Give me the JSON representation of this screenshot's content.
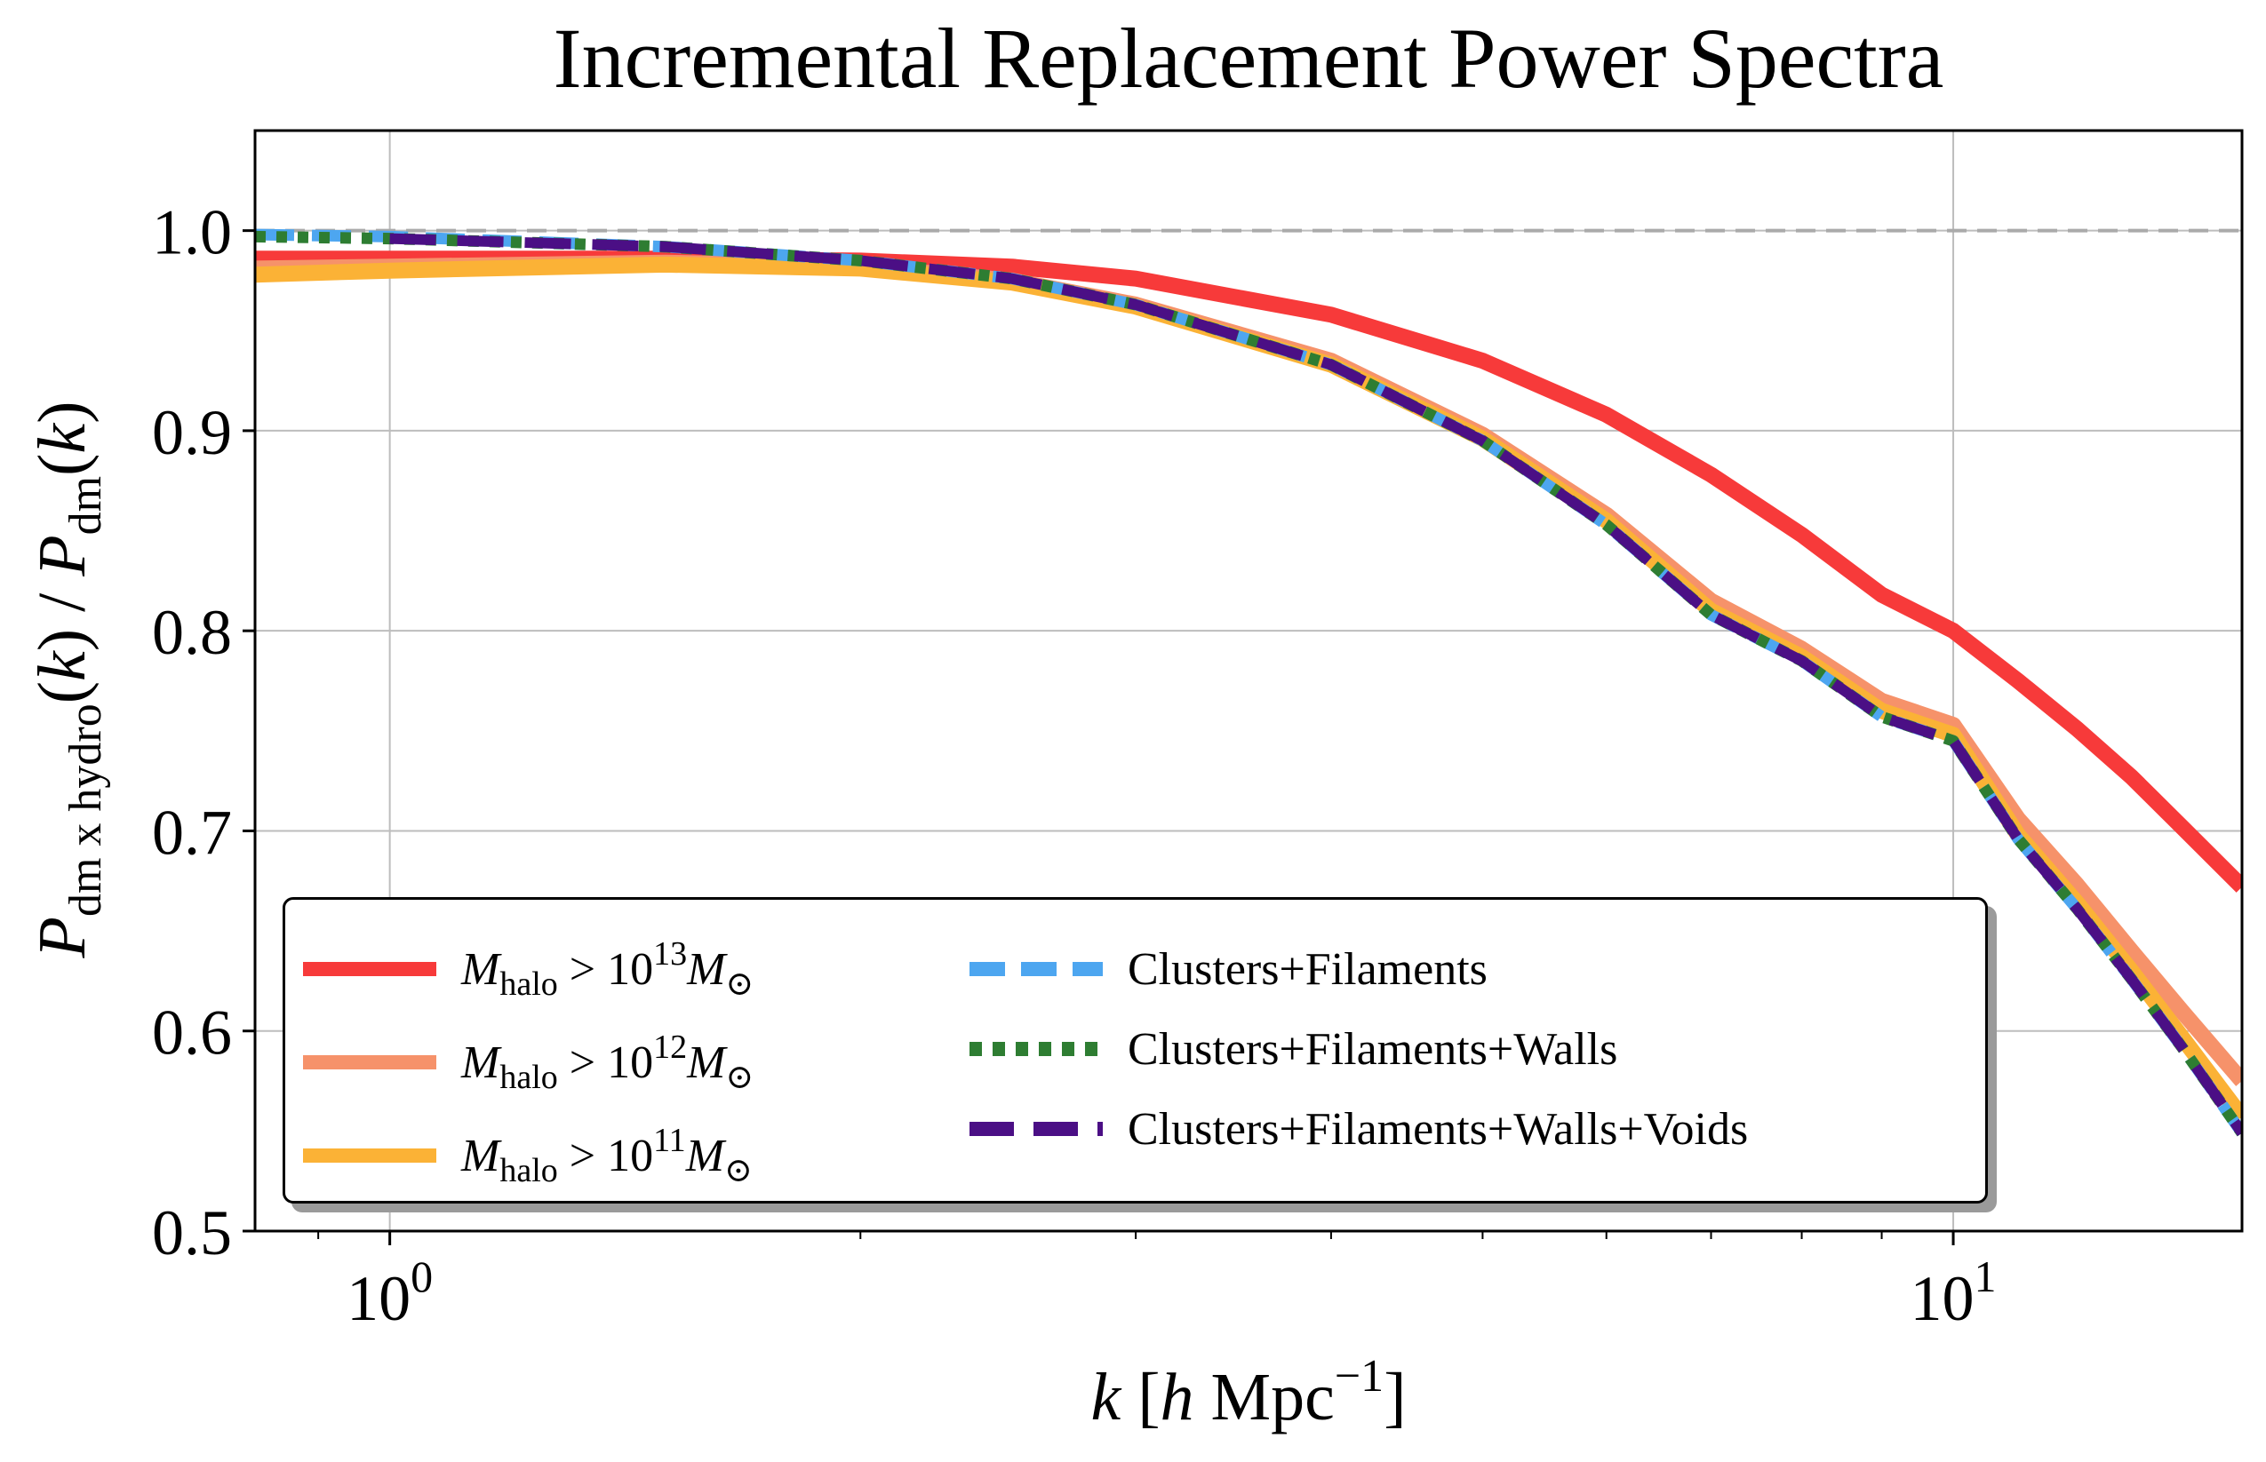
{
  "chart_data": {
    "type": "line",
    "title": "Incremental Replacement Power Spectra",
    "xlabel": "k [h Mpc^-1]",
    "ylabel": "P_dm x hydro(k) / P_dm(k)",
    "xscale": "log",
    "xlim": [
      0.82,
      15.3
    ],
    "ylim": [
      0.5,
      1.05
    ],
    "x_ticks": [
      {
        "value": 1,
        "label_base": "10",
        "label_exp": "0"
      },
      {
        "value": 10,
        "label_base": "10",
        "label_exp": "1"
      }
    ],
    "y_ticks": [
      0.5,
      0.6,
      0.7,
      0.8,
      0.9,
      1.0
    ],
    "y_tick_labels": [
      "0.5",
      "0.6",
      "0.7",
      "0.8",
      "0.9",
      "1.0"
    ],
    "grid": true,
    "reference_line": {
      "y": 1.0,
      "style": "dashed",
      "color": "#aaaaaa"
    },
    "legend_position": "lower-left",
    "series": [
      {
        "name": "M_halo > 10^13 M_sun",
        "color": "#f73a3a",
        "style": "solid",
        "x": [
          0.82,
          1.0,
          1.5,
          2.0,
          2.5,
          3.0,
          4.0,
          5.0,
          6.0,
          7.0,
          8.0,
          9.0,
          10.0,
          11.0,
          12.0,
          13.0,
          14.0,
          15.3
        ],
        "y": [
          0.986,
          0.986,
          0.986,
          0.985,
          0.982,
          0.976,
          0.958,
          0.935,
          0.908,
          0.878,
          0.848,
          0.818,
          0.8,
          0.775,
          0.751,
          0.727,
          0.702,
          0.672
        ]
      },
      {
        "name": "M_halo > 10^12 M_sun",
        "color": "#f6926a",
        "style": "solid",
        "x": [
          0.82,
          1.0,
          1.5,
          2.0,
          2.5,
          3.0,
          4.0,
          5.0,
          6.0,
          7.0,
          8.0,
          9.0,
          10.0,
          11.0,
          12.0,
          13.0,
          14.0,
          15.3
        ],
        "y": [
          0.981,
          0.982,
          0.984,
          0.982,
          0.975,
          0.963,
          0.935,
          0.898,
          0.858,
          0.815,
          0.791,
          0.765,
          0.753,
          0.706,
          0.673,
          0.64,
          0.61,
          0.575
        ]
      },
      {
        "name": "M_halo > 10^11 M_sun",
        "color": "#fbb236",
        "style": "solid",
        "x": [
          0.82,
          1.0,
          1.5,
          2.0,
          2.5,
          3.0,
          4.0,
          5.0,
          6.0,
          7.0,
          8.0,
          9.0,
          10.0,
          11.0,
          12.0,
          13.0,
          14.0,
          15.3
        ],
        "y": [
          0.978,
          0.98,
          0.983,
          0.981,
          0.974,
          0.962,
          0.933,
          0.896,
          0.855,
          0.81,
          0.787,
          0.76,
          0.748,
          0.698,
          0.664,
          0.63,
          0.597,
          0.557
        ]
      },
      {
        "name": "Clusters+Filaments",
        "color": "#4da6f0",
        "style": "dashed",
        "x": [
          0.82,
          1.0,
          1.5,
          2.0,
          2.5,
          3.0,
          4.0,
          5.0,
          6.0,
          7.0,
          8.0,
          9.0,
          10.0,
          11.0,
          12.0,
          13.0,
          14.0,
          15.3
        ],
        "y": [
          0.998,
          0.997,
          0.992,
          0.985,
          0.976,
          0.963,
          0.933,
          0.895,
          0.853,
          0.808,
          0.785,
          0.757,
          0.745,
          0.696,
          0.661,
          0.626,
          0.592,
          0.549
        ]
      },
      {
        "name": "Clusters+Filaments+Walls",
        "color": "#2e7d32",
        "style": "dotted",
        "x": [
          0.82,
          1.0,
          1.5,
          2.0,
          2.5,
          3.0,
          4.0,
          5.0,
          6.0,
          7.0,
          8.0,
          9.0,
          10.0,
          11.0,
          12.0,
          13.0,
          14.0,
          15.3
        ],
        "y": [
          0.997,
          0.996,
          0.992,
          0.985,
          0.976,
          0.963,
          0.933,
          0.895,
          0.853,
          0.808,
          0.785,
          0.757,
          0.745,
          0.696,
          0.661,
          0.626,
          0.592,
          0.549
        ]
      },
      {
        "name": "Clusters+Filaments+Walls+Voids",
        "color": "#4b0f85",
        "style": "solid",
        "x": [
          1.0,
          1.5,
          2.0,
          2.5,
          3.0,
          4.0,
          5.0,
          6.0,
          7.0,
          8.0,
          9.0,
          10.0,
          11.0,
          12.0,
          13.0,
          14.0,
          15.3
        ],
        "y": [
          0.996,
          0.992,
          0.985,
          0.976,
          0.963,
          0.933,
          0.895,
          0.853,
          0.808,
          0.785,
          0.757,
          0.745,
          0.696,
          0.661,
          0.626,
          0.592,
          0.549
        ]
      }
    ],
    "legend_labels": {
      "m13": {
        "m": "M",
        "sub": "halo",
        "op": " > 10",
        "exp": "13",
        "m2": "M",
        "sym": "⊙"
      },
      "m12": {
        "m": "M",
        "sub": "halo",
        "op": " > 10",
        "exp": "12",
        "m2": "M",
        "sym": "⊙"
      },
      "m11": {
        "m": "M",
        "sub": "halo",
        "op": " > 10",
        "exp": "11",
        "m2": "M",
        "sym": "⊙"
      },
      "cf": "Clusters+Filaments",
      "cfw": "Clusters+Filaments+Walls",
      "cfwv": "Clusters+Filaments+Walls+Voids"
    }
  }
}
